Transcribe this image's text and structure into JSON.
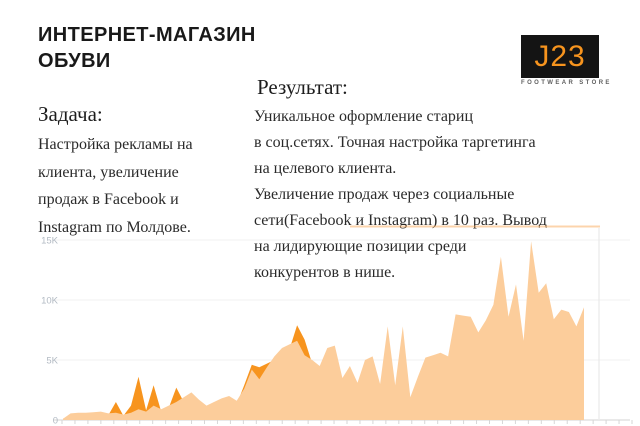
{
  "header": {
    "title_lines": [
      "ИНТЕРНЕТ-МАГАЗИН",
      "ОБУВИ"
    ]
  },
  "logo": {
    "text": "J23",
    "subtitle": "FOOTWEAR STORE",
    "bg_color": "#141414",
    "accent_color": "#F7941E"
  },
  "task": {
    "heading": "Задача:",
    "lines": [
      "Настройка рекламы на",
      "клиента, увеличение",
      "продаж в Facebook и",
      "Instagram по Молдове."
    ]
  },
  "result": {
    "heading": "Результат:",
    "lines": [
      "Уникальное оформление стариц",
      "в соц.сетях. Точная настройка таргетинга",
      "на целевого клиента.",
      "Увеличение продаж через социальные",
      "сети(Facebook и Instagram) в 10 раз. Вывод",
      "на лидирующие позиции среди",
      "конкурентов в нише."
    ]
  },
  "chart_data": {
    "type": "area",
    "title": "",
    "xlabel": "",
    "ylabel": "",
    "x": "unlabeled time points (daily stats, ticks only)",
    "ylim": [
      0,
      16
    ],
    "unit": "K",
    "grid": true,
    "legend_position": "none",
    "y_ticks": [
      {
        "label": "0",
        "value": 0
      },
      {
        "label": "5K",
        "value": 5
      },
      {
        "label": "10K",
        "value": 10
      },
      {
        "label": "15K",
        "value": 15
      }
    ],
    "x_axis": {
      "tick_count": 45,
      "labels_visible": false
    },
    "colors": {
      "primary_fill": "#FCCD9B",
      "secondary_fill": "#F7941E",
      "grid": "#f0f0f0",
      "baseline": "#e2e2e2",
      "tick": "#d6d6d6",
      "axis_label": "#b2bac3",
      "right_border": "#ececec",
      "artifact": "rgba(250,170,90,0.5)"
    },
    "series": [
      {
        "name": "secondary (dark orange spikes)",
        "color": "#F7941E",
        "values": [
          0.1,
          0.4,
          0.45,
          0.45,
          0.5,
          0.55,
          0.4,
          1.5,
          0.35,
          1.2,
          3.6,
          0.8,
          2.9,
          0.7,
          1.0,
          2.7,
          1.5,
          1.9,
          1.4,
          1.0,
          1.2,
          1.5,
          1.7,
          1.3,
          2.9,
          4.6,
          4.4,
          4.7,
          5.0,
          5.6,
          5.9,
          7.9,
          6.7,
          4.7,
          4.2,
          5.6,
          5.8,
          3.2,
          4.2,
          2.8,
          4.6,
          4.9,
          2.7,
          7.2,
          2.6,
          7.2,
          1.7,
          3.3,
          4.8,
          5.0,
          5.2,
          4.9,
          8.2,
          8.1,
          8.0,
          6.8,
          7.7,
          9.0,
          12.8,
          8.0,
          10.6,
          6.1,
          14.0,
          9.9,
          10.7,
          7.8,
          8.6,
          8.4,
          7.2,
          8.8
        ]
      },
      {
        "name": "primary (pale orange area)",
        "color": "#FCCD9B",
        "values": [
          0.1,
          0.55,
          0.6,
          0.6,
          0.65,
          0.7,
          0.55,
          0.6,
          0.45,
          0.6,
          0.9,
          0.7,
          1.2,
          0.9,
          1.2,
          1.5,
          1.9,
          2.3,
          1.7,
          1.2,
          1.5,
          1.8,
          2.0,
          1.6,
          2.6,
          4.2,
          3.4,
          4.4,
          5.3,
          6.0,
          6.3,
          6.6,
          5.4,
          5.0,
          4.5,
          6.0,
          6.2,
          3.5,
          4.5,
          3.1,
          5.0,
          5.3,
          3.0,
          7.8,
          2.9,
          7.8,
          1.9,
          3.6,
          5.2,
          5.4,
          5.6,
          5.3,
          8.8,
          8.7,
          8.6,
          7.3,
          8.3,
          9.6,
          13.6,
          8.6,
          11.3,
          6.6,
          14.9,
          10.6,
          11.4,
          8.4,
          9.2,
          9.0,
          7.8,
          9.4
        ]
      }
    ]
  }
}
